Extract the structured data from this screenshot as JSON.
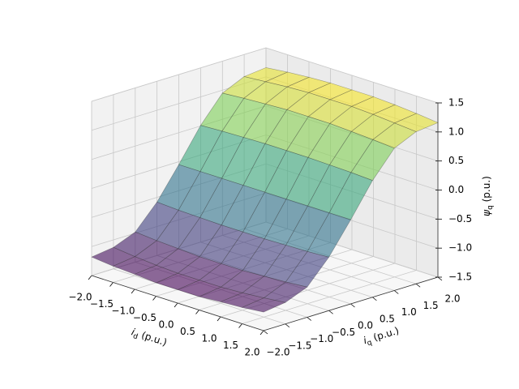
{
  "chart_data": {
    "type": "surface",
    "colormap": "viridis",
    "alpha": 0.6,
    "x_label": {
      "main": "i",
      "sub": "d",
      "unit": "(p.u.)"
    },
    "y_label": {
      "main": "i",
      "sub": "q",
      "unit": "(p.u.)"
    },
    "z_label": {
      "main": "ψ",
      "sub": "q",
      "unit": "(p.u.)"
    },
    "x": [
      -2,
      -1.5,
      -1,
      -0.5,
      0,
      0.5,
      1,
      1.5,
      2
    ],
    "y": [
      -2,
      -1.5,
      -1,
      -0.5,
      0,
      0.5,
      1,
      1.5,
      2
    ],
    "z": [
      [
        -1.18,
        -1.22,
        -1.24,
        -1.27,
        -1.27,
        -1.27,
        -1.24,
        -1.22,
        -1.18
      ],
      [
        -1.13,
        -1.17,
        -1.2,
        -1.22,
        -1.22,
        -1.22,
        -1.2,
        -1.17,
        -1.13
      ],
      [
        -0.98,
        -1.01,
        -1.03,
        -1.05,
        -1.05,
        -1.05,
        -1.03,
        -1.01,
        -0.98
      ],
      [
        -0.58,
        -0.6,
        -0.61,
        -0.62,
        -0.62,
        -0.62,
        -0.61,
        -0.6,
        -0.58
      ],
      [
        -0.05,
        -0.05,
        -0.05,
        -0.05,
        -0.05,
        -0.05,
        -0.05,
        -0.05,
        -0.05
      ],
      [
        0.51,
        0.53,
        0.54,
        0.55,
        0.55,
        0.55,
        0.54,
        0.53,
        0.51
      ],
      [
        0.95,
        0.98,
        1.0,
        1.02,
        1.02,
        1.02,
        1.0,
        0.98,
        0.95
      ],
      [
        1.12,
        1.15,
        1.18,
        1.2,
        1.2,
        1.2,
        1.18,
        1.15,
        1.12
      ],
      [
        1.16,
        1.2,
        1.23,
        1.25,
        1.25,
        1.25,
        1.23,
        1.2,
        1.16
      ]
    ],
    "xlim": [
      -2,
      2
    ],
    "ylim": [
      -2,
      2
    ],
    "zlim": [
      -1.5,
      1.5
    ],
    "xticks": [
      {
        "value": -2,
        "label": "−2.0"
      },
      {
        "value": -1.5,
        "label": "−1.5"
      },
      {
        "value": -1,
        "label": "−1.0"
      },
      {
        "value": -0.5,
        "label": "−0.5"
      },
      {
        "value": 0,
        "label": "0.0"
      },
      0.5,
      {
        "value": 1,
        "label": "1.0"
      },
      1.5,
      {
        "value": 2,
        "label": "2.0"
      }
    ],
    "yticks": [
      {
        "value": -2,
        "label": "−2.0"
      },
      {
        "value": -1.5,
        "label": "−1.5"
      },
      {
        "value": -1,
        "label": "−1.0"
      },
      {
        "value": -0.5,
        "label": "−0.5"
      },
      {
        "value": 0,
        "label": "0.0"
      },
      0.5,
      {
        "value": 1,
        "label": "1.0"
      },
      1.5,
      {
        "value": 2,
        "label": "2.0"
      }
    ],
    "zticks": [
      {
        "value": -1.5,
        "label": "−1.5"
      },
      {
        "value": -1,
        "label": "−1.0"
      },
      {
        "value": -0.5,
        "label": "−0.5"
      },
      {
        "value": 0,
        "label": "0.0"
      },
      0.5,
      {
        "value": 1,
        "label": "1.0"
      },
      1.5
    ],
    "grid": true
  }
}
